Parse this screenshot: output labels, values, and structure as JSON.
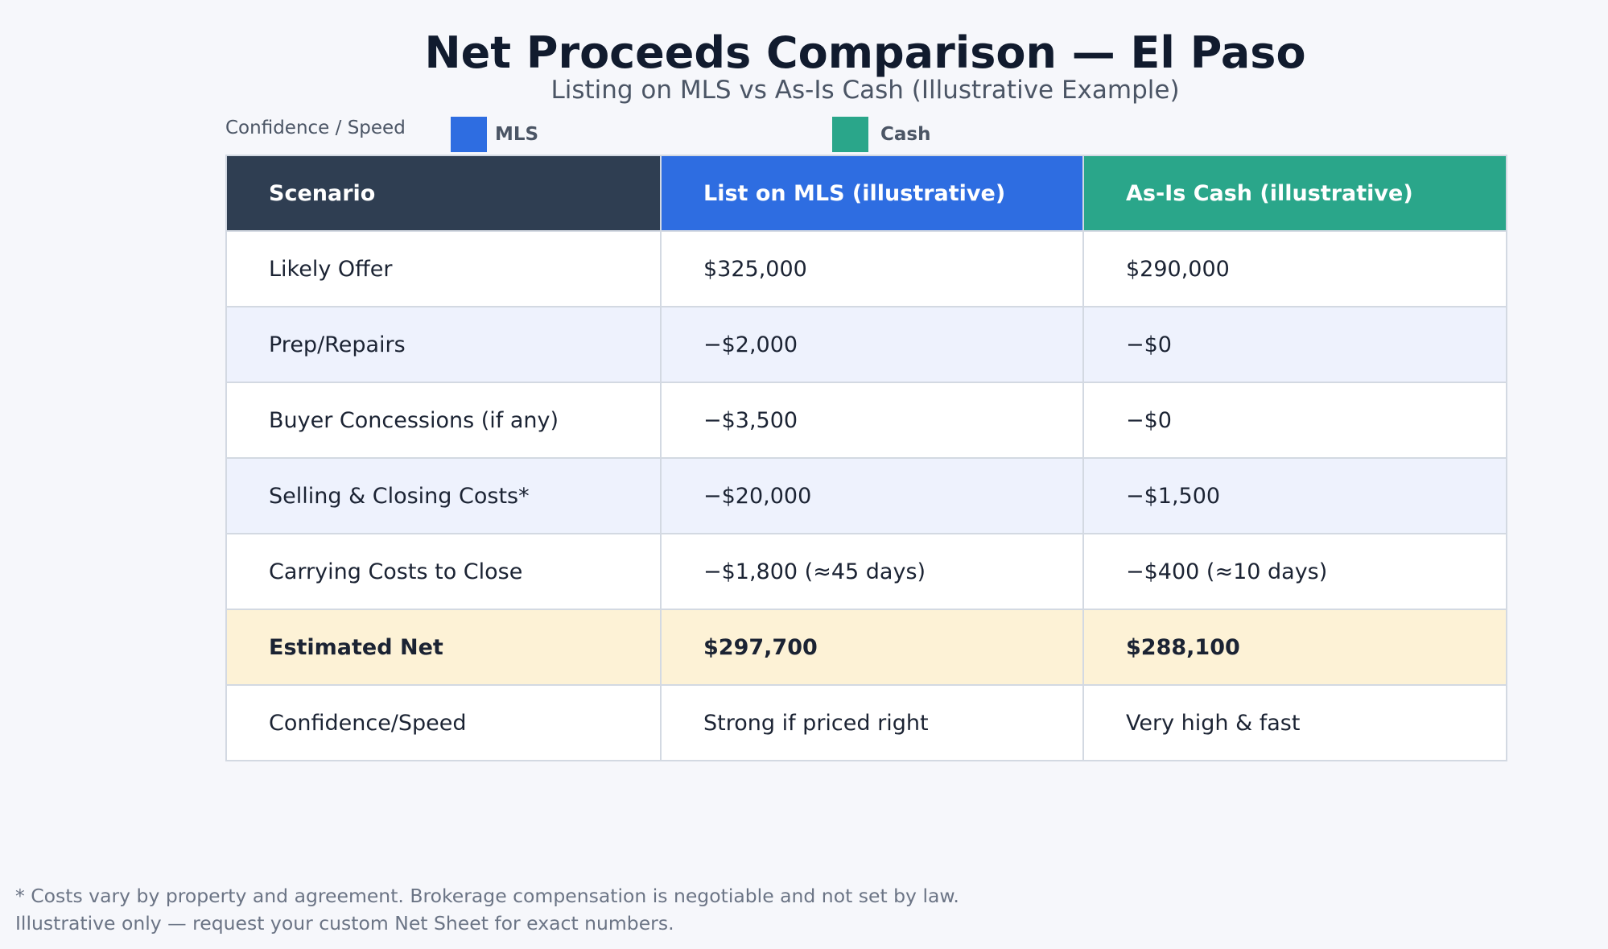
{
  "title": "Net Proceeds Comparison — El Paso",
  "subtitle": "Listing on MLS vs As-Is Cash (Illustrative Example)",
  "legend": {
    "label": "Confidence / Speed",
    "items": [
      {
        "label": "MLS",
        "color": "#2e6de1"
      },
      {
        "label": "Cash",
        "color": "#2aa68a"
      }
    ]
  },
  "table": {
    "headers": [
      "Scenario",
      "List on MLS (illustrative)",
      "As-Is Cash (illustrative)"
    ],
    "rows": [
      [
        "Likely Offer",
        "$325,000",
        "$290,000"
      ],
      [
        "Prep/Repairs",
        "−$2,000",
        "−$0"
      ],
      [
        "Buyer Concessions (if any)",
        "−$3,500",
        "−$0"
      ],
      [
        "Selling & Closing Costs*",
        "−$20,000",
        "−$1,500"
      ],
      [
        "Carrying Costs to Close",
        "−$1,800 (≈45 days)",
        "−$400 (≈10 days)"
      ],
      [
        "Estimated Net",
        "$297,700",
        "$288,100"
      ],
      [
        "Confidence/Speed",
        "Strong if priced right",
        "Very high & fast"
      ]
    ]
  },
  "footnotes": [
    "* Costs vary by property and agreement. Brokerage compensation is negotiable and not set by law.",
    "Illustrative only — request your custom Net Sheet for exact numbers."
  ]
}
